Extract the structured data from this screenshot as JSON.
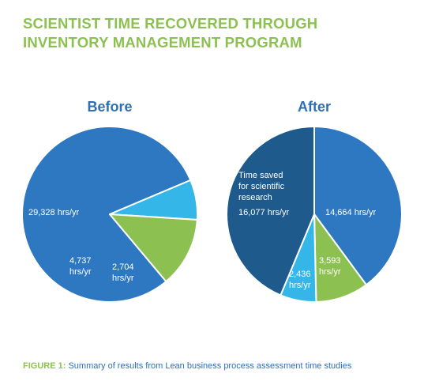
{
  "title_lines": [
    "SCIENTIST TIME RECOVERED THROUGH",
    "INVENTORY MANAGEMENT PROGRAM"
  ],
  "caption": {
    "label": "FIGURE 1:",
    "text": " Summary of results from Lean business process assessment time studies"
  },
  "colors": {
    "title": "#8cc152",
    "blue": "#2e78c2",
    "green": "#8cc152",
    "light_blue": "#34b6e8",
    "dark_blue": "#1e5a8c",
    "heading": "#2f6fb3"
  },
  "chart_data": [
    {
      "type": "pie",
      "title": "Before",
      "slices": [
        {
          "label_lines": [
            "29,328 hrs/yr"
          ],
          "value": 29328,
          "color": "#2e78c2"
        },
        {
          "label_lines": [
            "2,704",
            "hrs/yr"
          ],
          "value": 2704,
          "color": "#34b6e8"
        },
        {
          "label_lines": [
            "4,737",
            "hrs/yr"
          ],
          "value": 4737,
          "color": "#8cc152"
        }
      ]
    },
    {
      "type": "pie",
      "title": "After",
      "slices": [
        {
          "label_lines": [
            "14,664 hrs/yr"
          ],
          "value": 14664,
          "color": "#2e78c2"
        },
        {
          "label_lines": [
            "3,593",
            "hrs/yr"
          ],
          "value": 3593,
          "color": "#8cc152"
        },
        {
          "label_lines": [
            "2,436",
            "hrs/yr"
          ],
          "value": 2436,
          "color": "#34b6e8"
        },
        {
          "label_lines": [
            "Time saved",
            "for scientific",
            "research",
            "16,077 hrs/yr"
          ],
          "value": 16077,
          "color": "#1e5a8c"
        }
      ]
    }
  ]
}
